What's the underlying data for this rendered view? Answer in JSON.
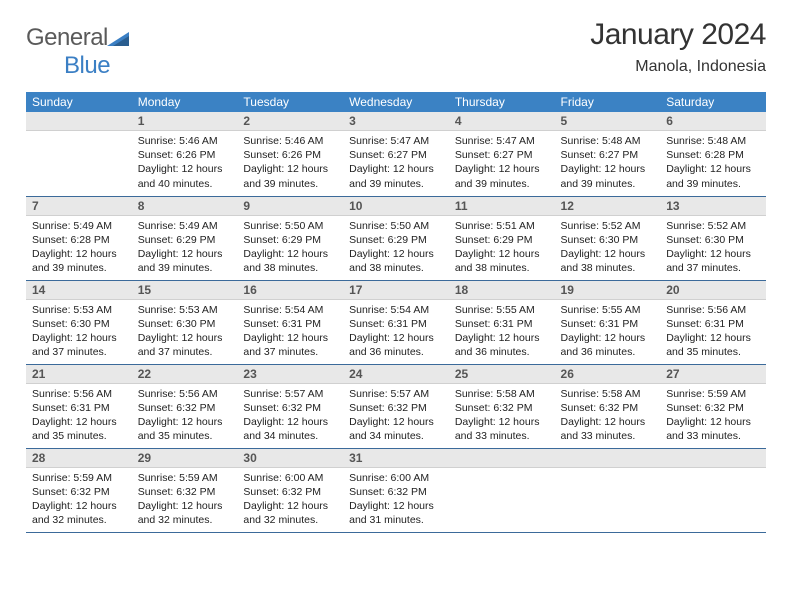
{
  "brand": {
    "name1": "General",
    "name2": "Blue"
  },
  "title": "January 2024",
  "location": "Manola, Indonesia",
  "colors": {
    "header_bg": "#3b82c4",
    "header_text": "#ffffff",
    "daynum_bg": "#e8e8e8",
    "border": "#3b6a9a",
    "logo_blue": "#3b7fc4",
    "logo_gray": "#5a5a5a"
  },
  "fonts": {
    "title_size": 30,
    "location_size": 16,
    "header_size": 12,
    "daynum_size": 12,
    "info_size": 10.5
  },
  "weekdays": [
    "Sunday",
    "Monday",
    "Tuesday",
    "Wednesday",
    "Thursday",
    "Friday",
    "Saturday"
  ],
  "weeks": [
    [
      null,
      {
        "n": "1",
        "sr": "5:46 AM",
        "ss": "6:26 PM",
        "dl": "12 hours and 40 minutes."
      },
      {
        "n": "2",
        "sr": "5:46 AM",
        "ss": "6:26 PM",
        "dl": "12 hours and 39 minutes."
      },
      {
        "n": "3",
        "sr": "5:47 AM",
        "ss": "6:27 PM",
        "dl": "12 hours and 39 minutes."
      },
      {
        "n": "4",
        "sr": "5:47 AM",
        "ss": "6:27 PM",
        "dl": "12 hours and 39 minutes."
      },
      {
        "n": "5",
        "sr": "5:48 AM",
        "ss": "6:27 PM",
        "dl": "12 hours and 39 minutes."
      },
      {
        "n": "6",
        "sr": "5:48 AM",
        "ss": "6:28 PM",
        "dl": "12 hours and 39 minutes."
      }
    ],
    [
      {
        "n": "7",
        "sr": "5:49 AM",
        "ss": "6:28 PM",
        "dl": "12 hours and 39 minutes."
      },
      {
        "n": "8",
        "sr": "5:49 AM",
        "ss": "6:29 PM",
        "dl": "12 hours and 39 minutes."
      },
      {
        "n": "9",
        "sr": "5:50 AM",
        "ss": "6:29 PM",
        "dl": "12 hours and 38 minutes."
      },
      {
        "n": "10",
        "sr": "5:50 AM",
        "ss": "6:29 PM",
        "dl": "12 hours and 38 minutes."
      },
      {
        "n": "11",
        "sr": "5:51 AM",
        "ss": "6:29 PM",
        "dl": "12 hours and 38 minutes."
      },
      {
        "n": "12",
        "sr": "5:52 AM",
        "ss": "6:30 PM",
        "dl": "12 hours and 38 minutes."
      },
      {
        "n": "13",
        "sr": "5:52 AM",
        "ss": "6:30 PM",
        "dl": "12 hours and 37 minutes."
      }
    ],
    [
      {
        "n": "14",
        "sr": "5:53 AM",
        "ss": "6:30 PM",
        "dl": "12 hours and 37 minutes."
      },
      {
        "n": "15",
        "sr": "5:53 AM",
        "ss": "6:30 PM",
        "dl": "12 hours and 37 minutes."
      },
      {
        "n": "16",
        "sr": "5:54 AM",
        "ss": "6:31 PM",
        "dl": "12 hours and 37 minutes."
      },
      {
        "n": "17",
        "sr": "5:54 AM",
        "ss": "6:31 PM",
        "dl": "12 hours and 36 minutes."
      },
      {
        "n": "18",
        "sr": "5:55 AM",
        "ss": "6:31 PM",
        "dl": "12 hours and 36 minutes."
      },
      {
        "n": "19",
        "sr": "5:55 AM",
        "ss": "6:31 PM",
        "dl": "12 hours and 36 minutes."
      },
      {
        "n": "20",
        "sr": "5:56 AM",
        "ss": "6:31 PM",
        "dl": "12 hours and 35 minutes."
      }
    ],
    [
      {
        "n": "21",
        "sr": "5:56 AM",
        "ss": "6:31 PM",
        "dl": "12 hours and 35 minutes."
      },
      {
        "n": "22",
        "sr": "5:56 AM",
        "ss": "6:32 PM",
        "dl": "12 hours and 35 minutes."
      },
      {
        "n": "23",
        "sr": "5:57 AM",
        "ss": "6:32 PM",
        "dl": "12 hours and 34 minutes."
      },
      {
        "n": "24",
        "sr": "5:57 AM",
        "ss": "6:32 PM",
        "dl": "12 hours and 34 minutes."
      },
      {
        "n": "25",
        "sr": "5:58 AM",
        "ss": "6:32 PM",
        "dl": "12 hours and 33 minutes."
      },
      {
        "n": "26",
        "sr": "5:58 AM",
        "ss": "6:32 PM",
        "dl": "12 hours and 33 minutes."
      },
      {
        "n": "27",
        "sr": "5:59 AM",
        "ss": "6:32 PM",
        "dl": "12 hours and 33 minutes."
      }
    ],
    [
      {
        "n": "28",
        "sr": "5:59 AM",
        "ss": "6:32 PM",
        "dl": "12 hours and 32 minutes."
      },
      {
        "n": "29",
        "sr": "5:59 AM",
        "ss": "6:32 PM",
        "dl": "12 hours and 32 minutes."
      },
      {
        "n": "30",
        "sr": "6:00 AM",
        "ss": "6:32 PM",
        "dl": "12 hours and 32 minutes."
      },
      {
        "n": "31",
        "sr": "6:00 AM",
        "ss": "6:32 PM",
        "dl": "12 hours and 31 minutes."
      },
      null,
      null,
      null
    ]
  ],
  "labels": {
    "sunrise": "Sunrise:",
    "sunset": "Sunset:",
    "daylight": "Daylight:"
  }
}
